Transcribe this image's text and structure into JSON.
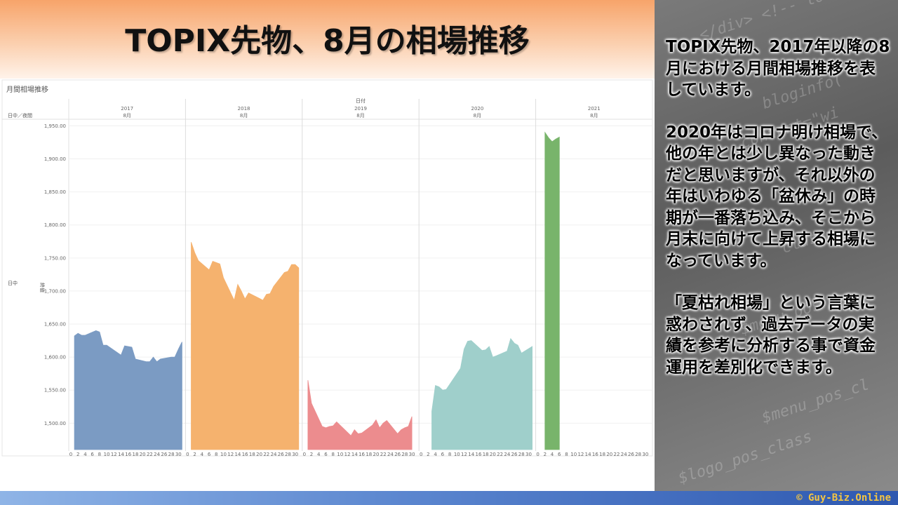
{
  "slide": {
    "title": "TOPIX先物、8月の相場推移",
    "side_paragraphs": [
      "TOPIX先物、2017年以降の8月における月間相場推移を表しています。",
      "2020年はコロナ明け相場で、他の年とは少し異なった動きだと思いますが、それ以外の年はいわゆる「盆休み」の時期が一番落ち込み、そこから月末に向けて上昇する相場になっています。",
      "「夏枯れ相場」という言葉に惑わされず、過去データの実績を参考に分析する事で資金運用を差別化できます。"
    ],
    "footer": "© Guy-Biz.Online"
  },
  "chart_data": {
    "type": "area",
    "title": "月間相場推移",
    "column_header": "日付",
    "row_header": "日中／夜間",
    "row_value": "日中",
    "ylabel": "終値",
    "ylim": [
      1460,
      1960
    ],
    "yticks": [
      "1,950.00",
      "1,900.00",
      "1,850.00",
      "1,800.00",
      "1,750.00",
      "1,700.00",
      "1,650.00",
      "1,600.00",
      "1,550.00",
      "1,500.00"
    ],
    "ytick_values": [
      1950,
      1900,
      1850,
      1800,
      1750,
      1700,
      1650,
      1600,
      1550,
      1500
    ],
    "xlim": [
      0,
      31
    ],
    "xticks": [
      "0",
      "2",
      "4",
      "6",
      "8",
      "10",
      "12",
      "14",
      "16",
      "18",
      "20",
      "22",
      "24",
      "26",
      "28",
      "30"
    ],
    "month_label": "8月",
    "colors": [
      "#7b9bc3",
      "#f5b26e",
      "#ec8c8e",
      "#9fcfcb",
      "#78b46b"
    ],
    "series": [
      {
        "name": "2017",
        "points": [
          [
            1,
            1632
          ],
          [
            2,
            1636
          ],
          [
            3,
            1633
          ],
          [
            4,
            1633
          ],
          [
            7,
            1640
          ],
          [
            8,
            1638
          ],
          [
            9,
            1618
          ],
          [
            10,
            1618
          ],
          [
            14,
            1603
          ],
          [
            15,
            1617
          ],
          [
            16,
            1616
          ],
          [
            17,
            1615
          ],
          [
            18,
            1597
          ],
          [
            21,
            1593
          ],
          [
            22,
            1593
          ],
          [
            23,
            1600
          ],
          [
            24,
            1593
          ],
          [
            25,
            1597
          ],
          [
            28,
            1600
          ],
          [
            29,
            1600
          ],
          [
            30,
            1612
          ],
          [
            31,
            1623
          ]
        ]
      },
      {
        "name": "2018",
        "points": [
          [
            1,
            1774
          ],
          [
            2,
            1758
          ],
          [
            3,
            1746
          ],
          [
            6,
            1732
          ],
          [
            7,
            1745
          ],
          [
            8,
            1743
          ],
          [
            9,
            1741
          ],
          [
            10,
            1720
          ],
          [
            13,
            1686
          ],
          [
            14,
            1710
          ],
          [
            15,
            1700
          ],
          [
            16,
            1688
          ],
          [
            17,
            1697
          ],
          [
            20,
            1689
          ],
          [
            21,
            1686
          ],
          [
            22,
            1695
          ],
          [
            23,
            1696
          ],
          [
            24,
            1707
          ],
          [
            27,
            1728
          ],
          [
            28,
            1730
          ],
          [
            29,
            1740
          ],
          [
            30,
            1740
          ],
          [
            31,
            1735
          ]
        ]
      },
      {
        "name": "2019",
        "points": [
          [
            1,
            1565
          ],
          [
            2,
            1530
          ],
          [
            5,
            1495
          ],
          [
            6,
            1493
          ],
          [
            7,
            1495
          ],
          [
            8,
            1496
          ],
          [
            9,
            1502
          ],
          [
            13,
            1481
          ],
          [
            14,
            1490
          ],
          [
            15,
            1484
          ],
          [
            16,
            1485
          ],
          [
            19,
            1497
          ],
          [
            20,
            1505
          ],
          [
            21,
            1493
          ],
          [
            22,
            1500
          ],
          [
            23,
            1504
          ],
          [
            26,
            1484
          ],
          [
            27,
            1490
          ],
          [
            28,
            1493
          ],
          [
            29,
            1495
          ],
          [
            30,
            1510
          ]
        ]
      },
      {
        "name": "2020",
        "points": [
          [
            3,
            1518
          ],
          [
            4,
            1557
          ],
          [
            5,
            1555
          ],
          [
            6,
            1550
          ],
          [
            7,
            1551
          ],
          [
            11,
            1583
          ],
          [
            12,
            1612
          ],
          [
            13,
            1624
          ],
          [
            14,
            1625
          ],
          [
            17,
            1610
          ],
          [
            18,
            1611
          ],
          [
            19,
            1616
          ],
          [
            20,
            1600
          ],
          [
            21,
            1602
          ],
          [
            24,
            1609
          ],
          [
            25,
            1628
          ],
          [
            26,
            1621
          ],
          [
            27,
            1618
          ],
          [
            28,
            1606
          ],
          [
            31,
            1616
          ]
        ]
      },
      {
        "name": "2021",
        "points": [
          [
            2,
            1940
          ],
          [
            3,
            1932
          ],
          [
            4,
            1926
          ],
          [
            5,
            1930
          ],
          [
            6,
            1933
          ]
        ]
      }
    ]
  }
}
